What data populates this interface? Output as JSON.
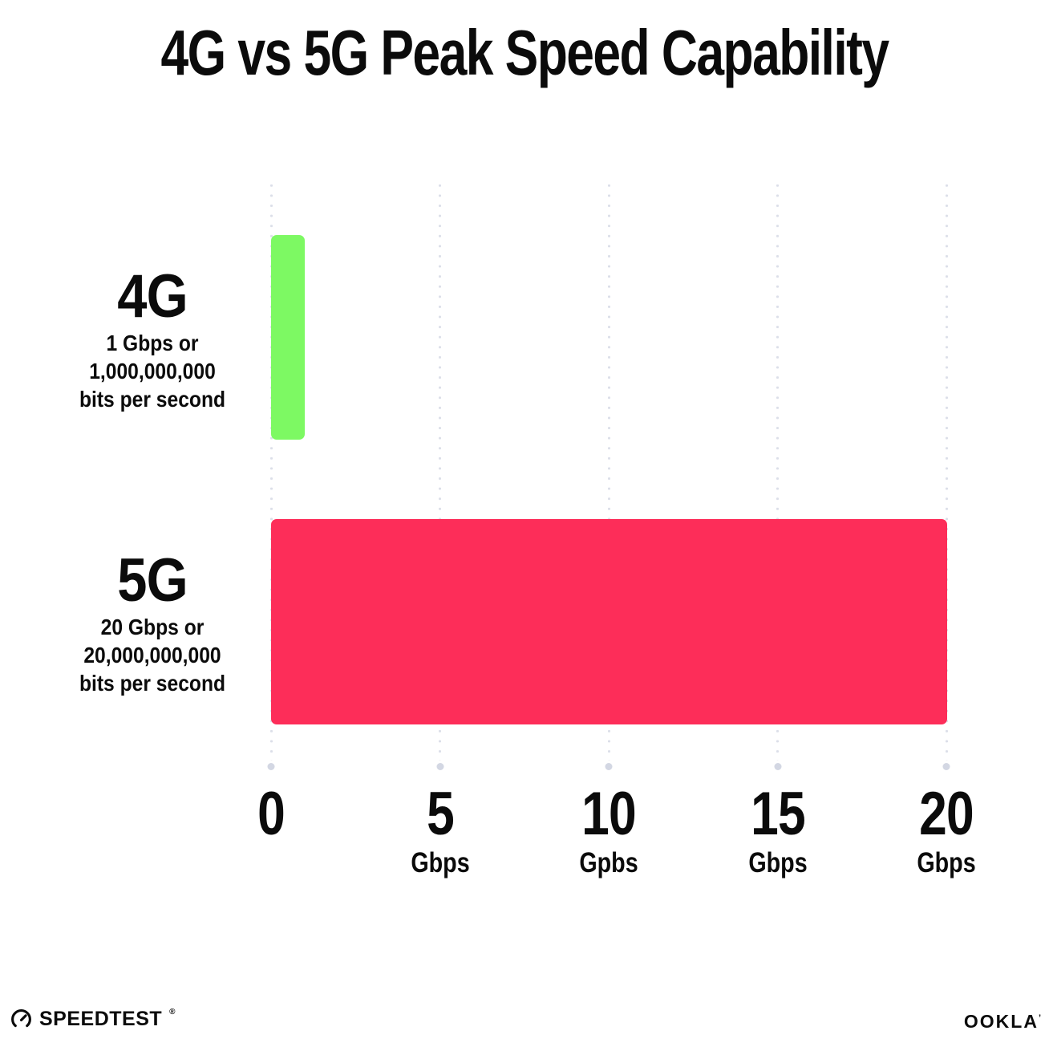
{
  "title": "4G vs 5G Peak Speed Capability",
  "chart_data": {
    "type": "bar",
    "orientation": "horizontal",
    "title": "4G vs 5G Peak Speed Capability",
    "categories": [
      "4G",
      "5G"
    ],
    "values": [
      1,
      20
    ],
    "value_unit": "Gbps",
    "bar_colors": [
      "#7DF963",
      "#FD2D59"
    ],
    "xlim": [
      0,
      20
    ],
    "x_tick_values": [
      0,
      5,
      10,
      15,
      20
    ],
    "grid": "dotted vertical gridlines at each x tick",
    "legend": "none",
    "xlabel": "",
    "ylabel": ""
  },
  "rows": [
    {
      "label": "4G",
      "sub_lines": [
        "1 Gbps or",
        "1,000,000,000",
        "bits per second"
      ],
      "value_gbps": 1,
      "color": "#7DF963"
    },
    {
      "label": "5G",
      "sub_lines": [
        "20 Gbps or",
        "20,000,000,000",
        "bits per second"
      ],
      "value_gbps": 20,
      "color": "#FD2D59"
    }
  ],
  "x_axis": {
    "ticks": [
      {
        "value": "0",
        "unit": ""
      },
      {
        "value": "5",
        "unit": "Gbps"
      },
      {
        "value": "10",
        "unit": "Gpbs"
      },
      {
        "value": "15",
        "unit": "Gbps"
      },
      {
        "value": "20",
        "unit": "Gbps"
      }
    ]
  },
  "footer": {
    "speedtest_label": "SPEEDTEST",
    "speedtest_mark": "®",
    "ookla_label": "OOKLA",
    "ookla_mark": "’"
  },
  "colors": {
    "background": "#FFFFFF",
    "text": "#0B0B0B",
    "bar_4g": "#7DF963",
    "bar_5g": "#FD2D59",
    "grid_dot": "#DCDFE9",
    "grid_end_dot": "#D3D7E3"
  }
}
